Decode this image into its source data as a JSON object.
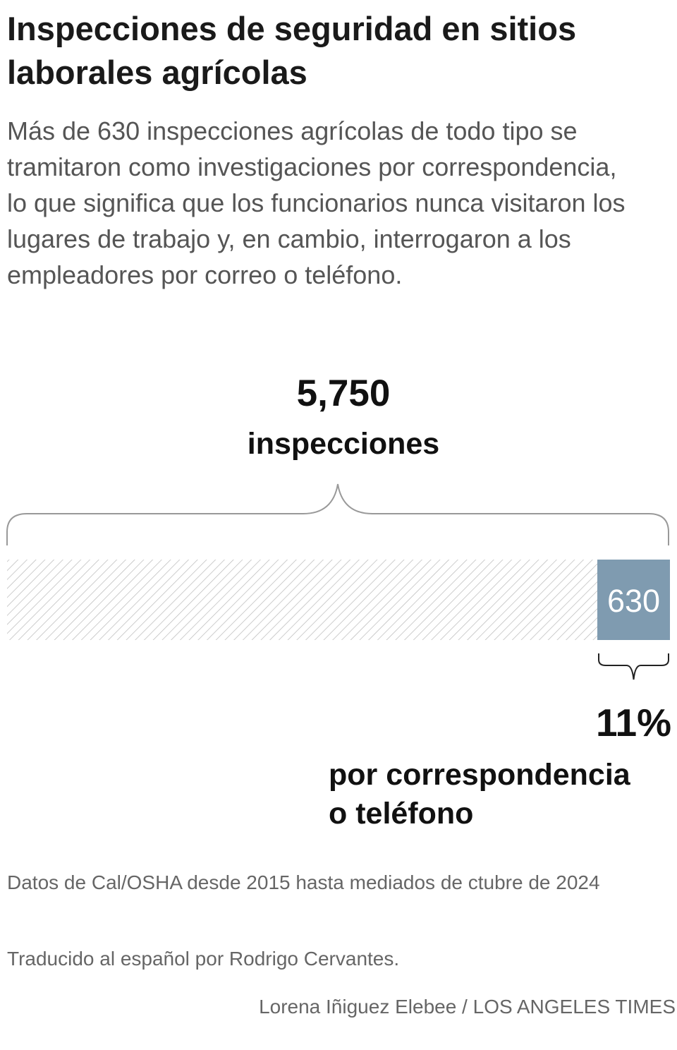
{
  "title": "Inspecciones de seguridad en sitios laborales agrícolas",
  "subtitle": "Más de 630 inspecciones agrícolas de todo tipo se tramitaron como investigaciones por correspondencia, lo que significa que los funcionarios nunca visitaron los lugares de trabajo y, en cambio, interrogaron a los empleadores por correo o teléfono.",
  "chart_data": {
    "type": "bar",
    "orientation": "horizontal",
    "stacked": true,
    "total": 5750,
    "total_value_label": "5,750",
    "total_unit_label": "inspecciones",
    "segments": [
      {
        "name": "",
        "value": 5120,
        "color": "#b8b8b8",
        "pattern": "diagonal-hatch"
      },
      {
        "name": "por correspondencia o teléfono",
        "value": 630,
        "value_label": "630",
        "color": "#7f9bb0"
      }
    ],
    "highlight_percent_label": "11%",
    "highlight_desc_lines": [
      "por correspondencia",
      "o teléfono"
    ]
  },
  "source": "Datos de Cal/OSHA desde 2015 hasta mediados de ctubre de 2024",
  "translation_note": "Traducido al español por Rodrigo Cervantes.",
  "credit": "Lorena Iñiguez Elebee / LOS ANGELES TIMES"
}
